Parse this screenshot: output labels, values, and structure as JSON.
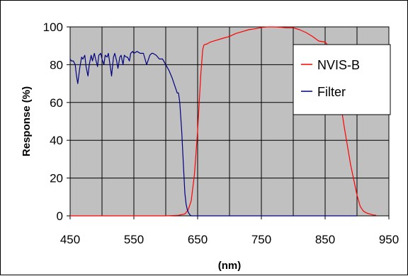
{
  "chart_data": {
    "type": "line",
    "title": "",
    "xlabel": "(nm)",
    "ylabel": "Response (%)",
    "xlim": [
      450,
      950
    ],
    "ylim": [
      0,
      100
    ],
    "x_ticks": [
      450,
      550,
      650,
      750,
      850,
      950
    ],
    "x_tick_labels": [
      "450",
      "550",
      "650",
      "750",
      "850",
      "950"
    ],
    "y_ticks": [
      0,
      20,
      40,
      60,
      80,
      100
    ],
    "y_tick_labels": [
      "0",
      "20",
      "40",
      "60",
      "80",
      "100"
    ],
    "x_gridlines": [
      500,
      550,
      600,
      650,
      700,
      750,
      800,
      850,
      900,
      950
    ],
    "grid": true,
    "plot_background": "#c0c0c0",
    "legend_position": "top-right",
    "series": [
      {
        "name": "NVIS-B",
        "color": "#ff0000",
        "x": [
          450,
          600,
          620,
          630,
          635,
          640,
          645,
          650,
          655,
          658,
          660,
          665,
          670,
          680,
          690,
          700,
          710,
          720,
          730,
          740,
          750,
          760,
          770,
          780,
          790,
          800,
          810,
          820,
          830,
          840,
          850,
          860,
          865,
          870,
          875,
          880,
          885,
          890,
          895,
          900,
          905,
          910,
          915,
          920,
          925,
          930
        ],
        "y": [
          0,
          0,
          0.3,
          1,
          3,
          8,
          22,
          45,
          75,
          88,
          90.5,
          91,
          92,
          93,
          94,
          95,
          96.5,
          97.5,
          98.5,
          99,
          99.7,
          100,
          100,
          99.8,
          99.5,
          99.5,
          98.5,
          97,
          95,
          92.5,
          92,
          88,
          80,
          69,
          58,
          47,
          37,
          27,
          19,
          11,
          5,
          2.5,
          1.5,
          1,
          0.5,
          0.3
        ]
      },
      {
        "name": "Filter",
        "color": "#000080",
        "x": [
          450,
          452,
          455,
          458,
          460,
          462,
          465,
          468,
          470,
          473,
          475,
          478,
          480,
          483,
          485,
          488,
          490,
          493,
          495,
          498,
          500,
          503,
          505,
          508,
          510,
          513,
          515,
          518,
          520,
          523,
          525,
          528,
          530,
          533,
          535,
          538,
          540,
          543,
          545,
          548,
          550,
          555,
          560,
          565,
          570,
          575,
          578,
          580,
          585,
          590,
          595,
          600,
          605,
          610,
          612,
          615,
          618,
          620,
          622,
          625,
          628,
          630,
          632,
          634,
          636,
          638,
          640,
          645,
          650,
          700,
          800,
          900
        ],
        "y": [
          83,
          82,
          82,
          80,
          74,
          70,
          78,
          84,
          83,
          85,
          79,
          74,
          80,
          85,
          82,
          86,
          83,
          79,
          85,
          86,
          83,
          80,
          85,
          84,
          86,
          79,
          74,
          84,
          86,
          82,
          78,
          84,
          85,
          80,
          85,
          84,
          84,
          82,
          86,
          87,
          86,
          87,
          86,
          86,
          80,
          85,
          86,
          86,
          85,
          83,
          83,
          80,
          77,
          73,
          71,
          68,
          65,
          65,
          60,
          45,
          25,
          12,
          6,
          3,
          1.5,
          0.5,
          0,
          0,
          0,
          0,
          0,
          0
        ]
      }
    ]
  }
}
